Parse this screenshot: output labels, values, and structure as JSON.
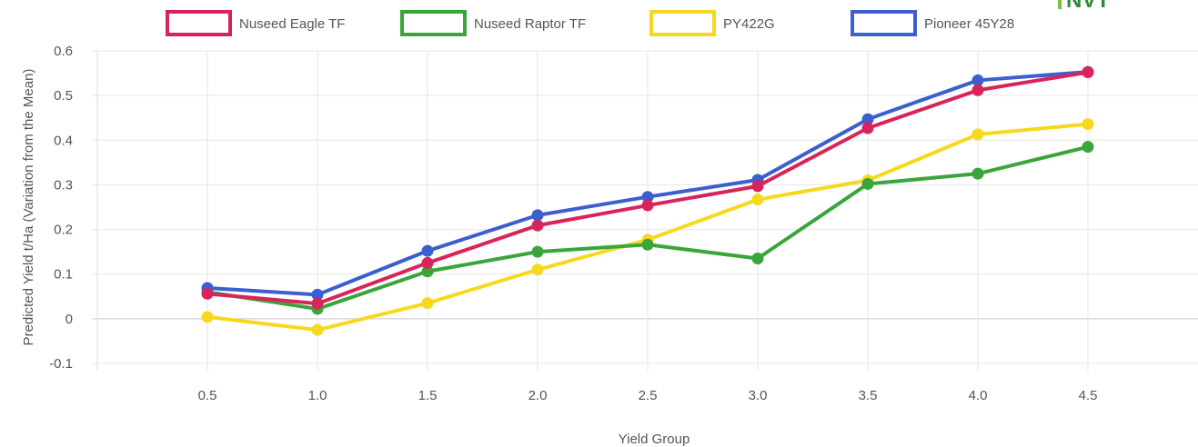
{
  "chart_data": {
    "type": "line",
    "xlabel": "Yield Group",
    "ylabel": "Predicted Yield t/Ha (Variation from the Mean)",
    "categories": [
      "0.5",
      "1.0",
      "1.5",
      "2.0",
      "2.5",
      "3.0",
      "3.5",
      "4.0",
      "4.5"
    ],
    "x": [
      0.5,
      1.0,
      1.5,
      2.0,
      2.5,
      3.0,
      3.5,
      4.0,
      4.5
    ],
    "xlim": [
      0,
      5
    ],
    "ylim": [
      -0.1,
      0.6
    ],
    "yticks": [
      "-0.1",
      "0",
      "0.1",
      "0.2",
      "0.3",
      "0.4",
      "0.5",
      "0.6"
    ],
    "grid": true,
    "legend": "top",
    "series": [
      {
        "name": "Nuseed Eagle TF",
        "color": "#d9245a",
        "values": [
          0.056,
          0.034,
          0.125,
          0.209,
          0.254,
          0.297,
          0.427,
          0.512,
          0.552
        ]
      },
      {
        "name": "Nuseed Raptor TF",
        "color": "#3aa53a",
        "values": [
          0.06,
          0.022,
          0.106,
          0.15,
          0.166,
          0.135,
          0.302,
          0.325,
          0.385
        ]
      },
      {
        "name": "PY422G",
        "color": "#f6d91e",
        "values": [
          0.004,
          -0.025,
          0.035,
          0.11,
          0.177,
          0.267,
          0.31,
          0.413,
          0.436
        ]
      },
      {
        "name": "Pioneer 45Y28",
        "color": "#3b5fcf",
        "values": [
          0.069,
          0.054,
          0.152,
          0.232,
          0.273,
          0.311,
          0.447,
          0.534,
          0.553
        ]
      }
    ]
  },
  "logo": {
    "text": "NVT"
  }
}
